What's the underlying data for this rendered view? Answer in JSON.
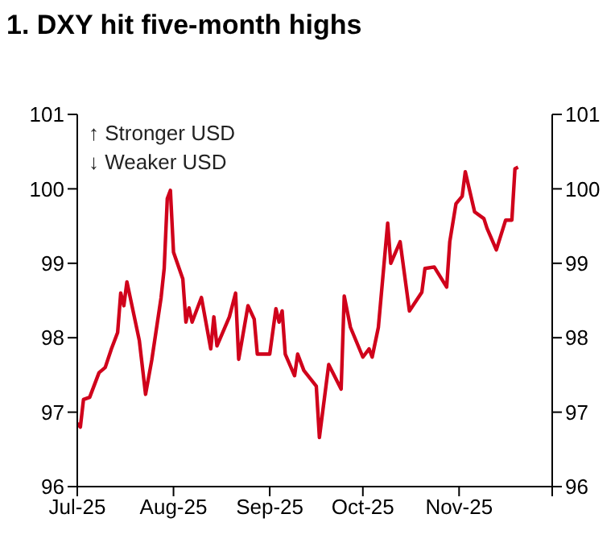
{
  "chart_data": {
    "type": "line",
    "title": "1. DXY hit five-month highs",
    "annotations": [
      "↑ Stronger USD",
      "↓ Weaker USD"
    ],
    "x": [
      "2025-07-01",
      "2025-07-02",
      "2025-07-03",
      "2025-07-05",
      "2025-07-08",
      "2025-07-10",
      "2025-07-12",
      "2025-07-14",
      "2025-07-15",
      "2025-07-16",
      "2025-07-17",
      "2025-07-21",
      "2025-07-23",
      "2025-07-25",
      "2025-07-28",
      "2025-07-29",
      "2025-07-30",
      "2025-07-31",
      "2025-08-01",
      "2025-08-04",
      "2025-08-05",
      "2025-08-06",
      "2025-08-07",
      "2025-08-10",
      "2025-08-13",
      "2025-08-14",
      "2025-08-15",
      "2025-08-19",
      "2025-08-21",
      "2025-08-22",
      "2025-08-25",
      "2025-08-27",
      "2025-08-28",
      "2025-09-01",
      "2025-09-03",
      "2025-09-04",
      "2025-09-05",
      "2025-09-06",
      "2025-09-09",
      "2025-09-10",
      "2025-09-12",
      "2025-09-16",
      "2025-09-17",
      "2025-09-20",
      "2025-09-24",
      "2025-09-25",
      "2025-09-27",
      "2025-10-01",
      "2025-10-03",
      "2025-10-04",
      "2025-10-06",
      "2025-10-09",
      "2025-10-10",
      "2025-10-13",
      "2025-10-16",
      "2025-10-20",
      "2025-10-21",
      "2025-10-24",
      "2025-10-28",
      "2025-10-29",
      "2025-10-31",
      "2025-11-02",
      "2025-11-03",
      "2025-11-06",
      "2025-11-09",
      "2025-11-10",
      "2025-11-13",
      "2025-11-16",
      "2025-11-18",
      "2025-11-19",
      "2025-11-20"
    ],
    "series": [
      {
        "color": "#d0021b",
        "values": [
          96.85,
          96.8,
          97.17,
          97.2,
          97.53,
          97.6,
          97.85,
          98.07,
          98.6,
          98.43,
          98.75,
          97.96,
          97.24,
          97.7,
          98.54,
          98.93,
          99.87,
          99.98,
          99.15,
          98.79,
          98.21,
          98.4,
          98.21,
          98.54,
          97.85,
          98.28,
          97.89,
          98.28,
          98.6,
          97.71,
          98.43,
          98.25,
          97.78,
          97.78,
          98.39,
          98.21,
          98.36,
          97.78,
          97.49,
          97.78,
          97.56,
          97.35,
          96.66,
          97.64,
          97.31,
          98.56,
          98.14,
          97.74,
          97.85,
          97.74,
          98.14,
          99.54,
          99.0,
          99.29,
          98.36,
          98.61,
          98.93,
          98.95,
          98.68,
          99.29,
          99.8,
          99.9,
          100.23,
          99.69,
          99.6,
          99.47,
          99.18,
          99.58,
          99.58,
          100.27,
          100.29
        ]
      }
    ],
    "xlim": [
      "2025-07-01",
      "2025-12-01"
    ],
    "xticks": [
      {
        "value": "2025-07-01",
        "label": "Jul-25"
      },
      {
        "value": "2025-08-01",
        "label": "Aug-25"
      },
      {
        "value": "2025-09-01",
        "label": "Sep-25"
      },
      {
        "value": "2025-10-01",
        "label": "Oct-25"
      },
      {
        "value": "2025-11-01",
        "label": "Nov-25"
      },
      {
        "value": "2025-12-01",
        "label": null
      }
    ],
    "ylim": [
      96,
      101
    ],
    "yticks": [
      96,
      97,
      98,
      99,
      100,
      101
    ],
    "y2lim": [
      96,
      101
    ],
    "y2ticks": [
      96,
      97,
      98,
      99,
      100,
      101
    ],
    "grid": false,
    "legend": false,
    "marker": "none",
    "line_style": "solid"
  }
}
